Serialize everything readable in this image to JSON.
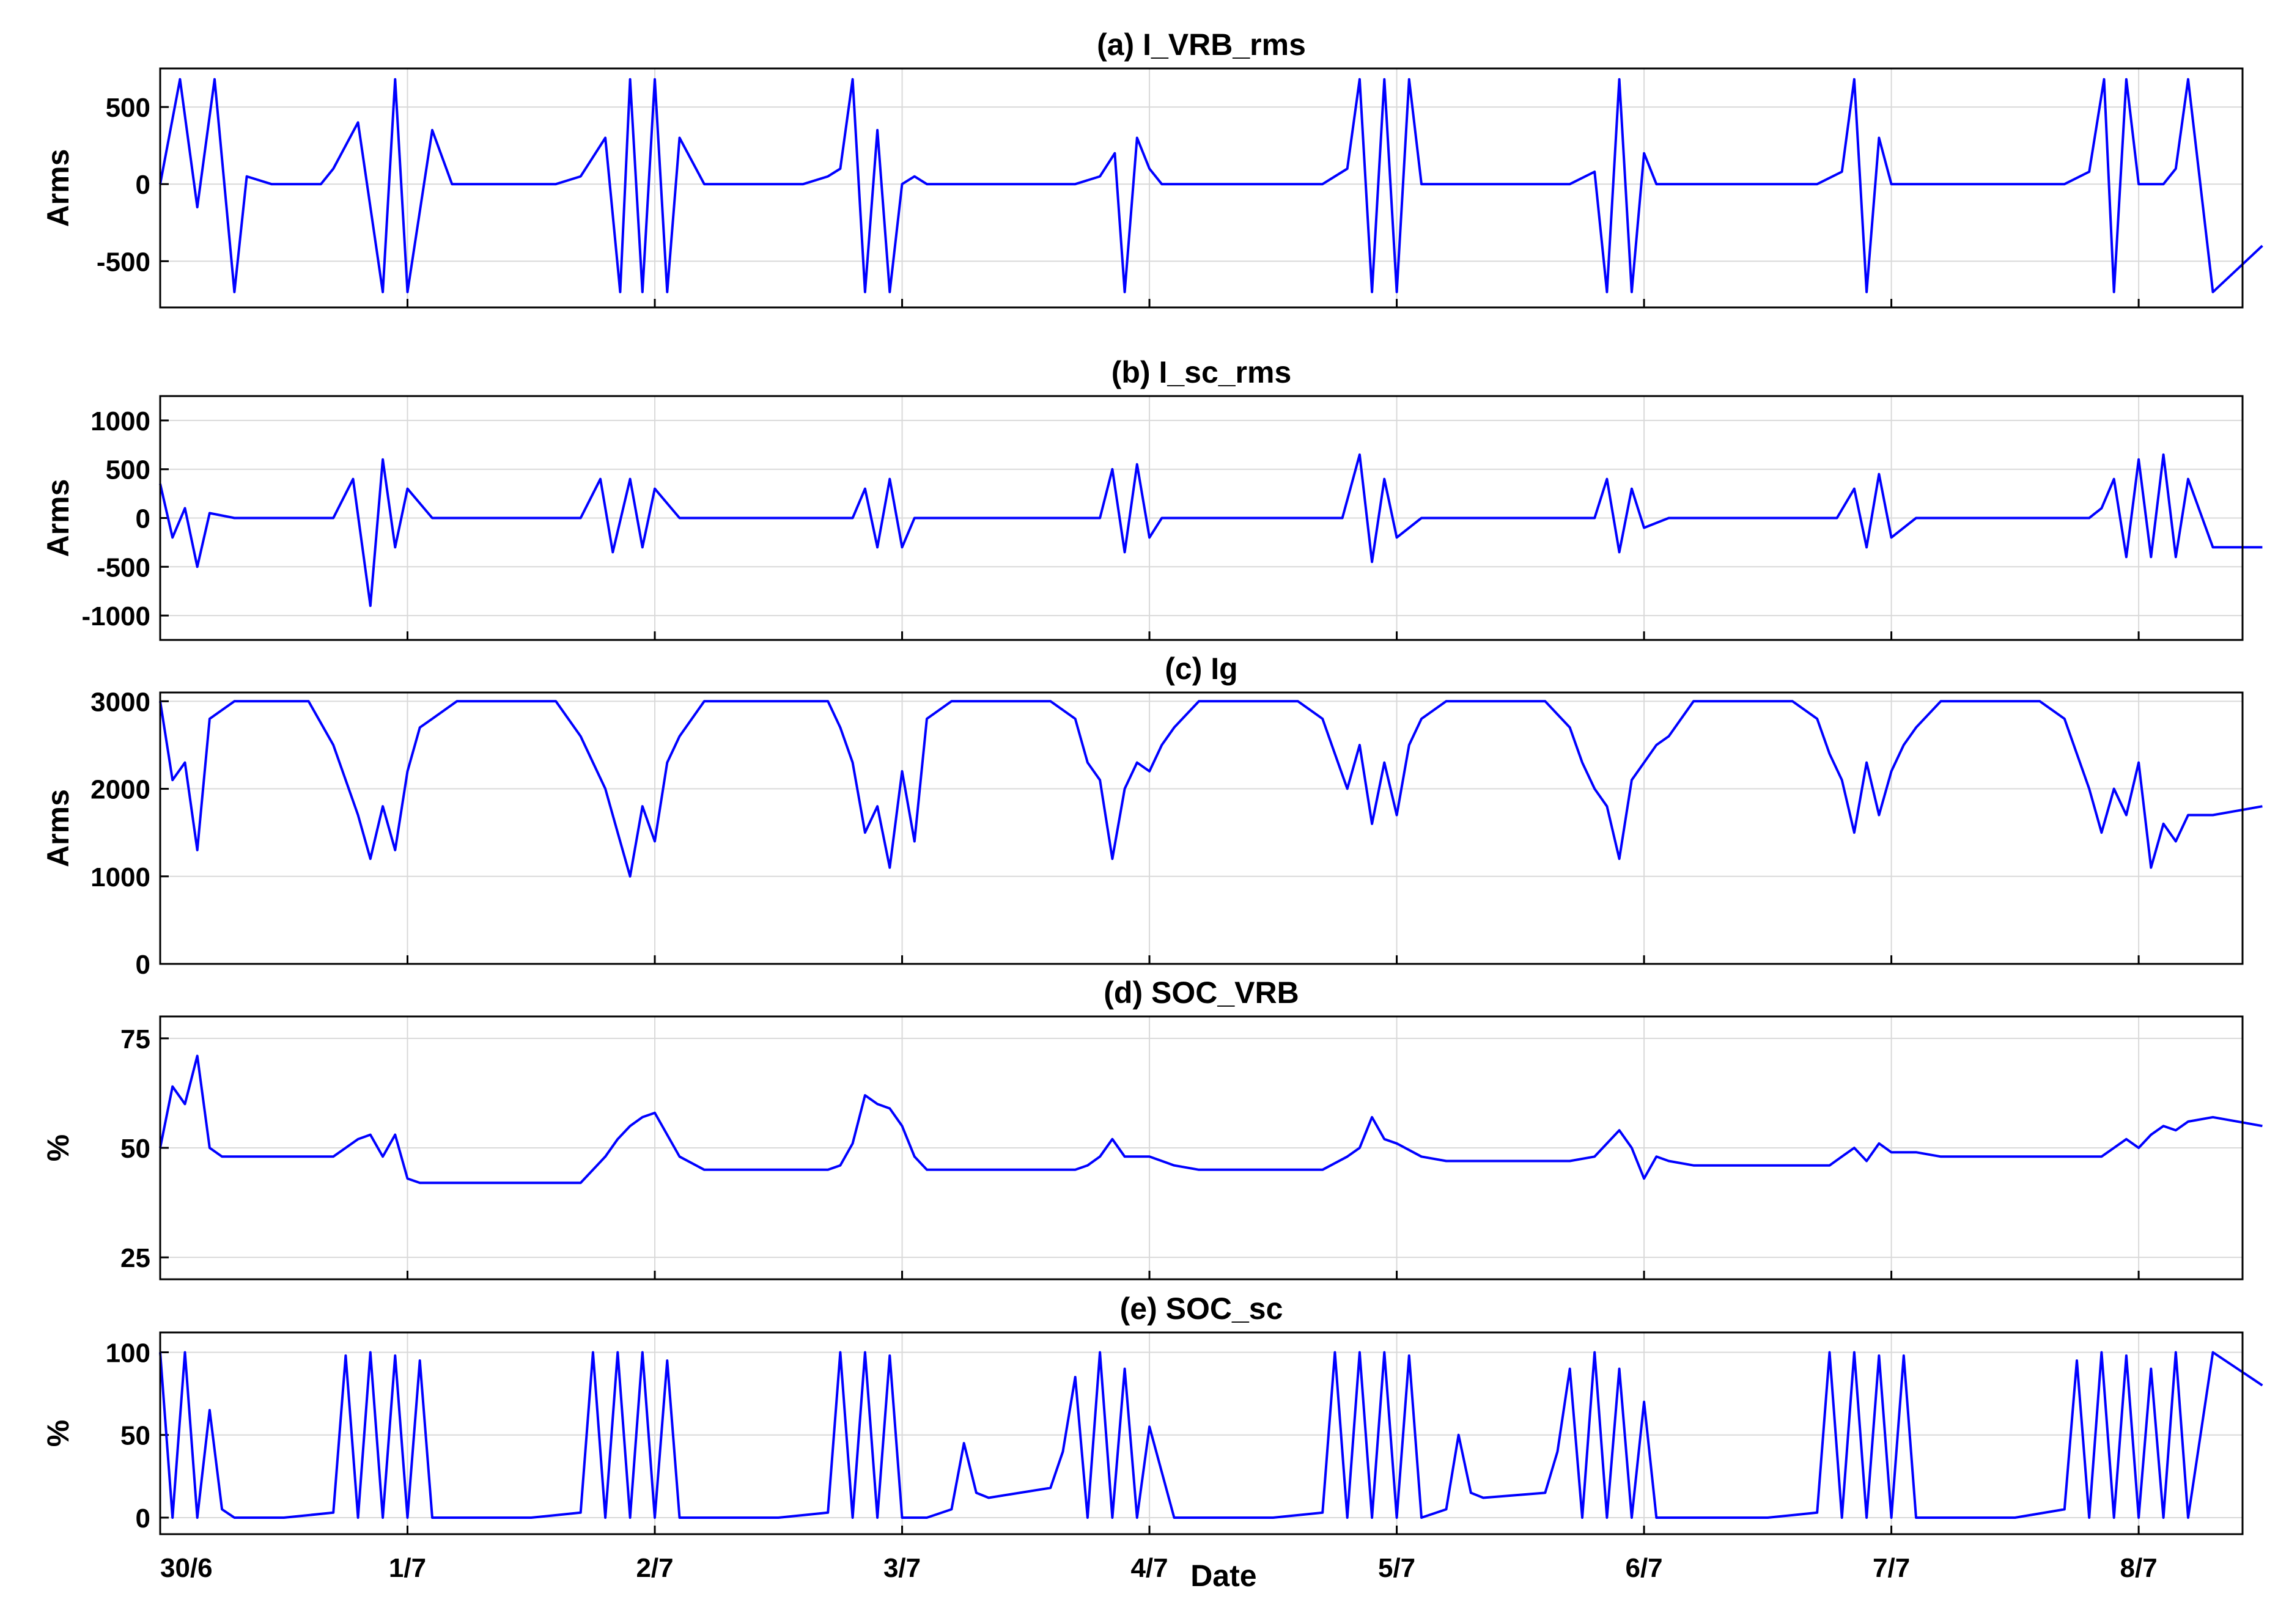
{
  "figure": {
    "xlabel": "Date",
    "x_ticks": [
      "30/6",
      "1/7",
      "2/7",
      "3/7",
      "4/7",
      "5/7",
      "6/7",
      "7/7",
      "8/7"
    ]
  },
  "colors": {
    "series": "#0000ff",
    "grid": "#d9d9d9",
    "frame": "#000000"
  },
  "chart_data": [
    {
      "type": "line",
      "title": "(a) I_VRB_rms",
      "ylabel": "Arms",
      "ylim": [
        -800,
        750
      ],
      "yticks": [
        -500,
        0,
        500
      ],
      "x": [
        0,
        0.08,
        0.15,
        0.22,
        0.3,
        0.35,
        0.45,
        0.5,
        0.55,
        0.6,
        0.65,
        0.7,
        0.8,
        0.9,
        0.95,
        1.0,
        1.1,
        1.18,
        1.25,
        1.35,
        1.5,
        1.6,
        1.7,
        1.8,
        1.86,
        1.9,
        1.95,
        2.0,
        2.05,
        2.1,
        2.2,
        2.25,
        2.3,
        2.4,
        2.5,
        2.6,
        2.7,
        2.75,
        2.8,
        2.85,
        2.9,
        2.95,
        3.0,
        3.05,
        3.1,
        3.2,
        3.3,
        3.5,
        3.7,
        3.8,
        3.86,
        3.9,
        3.95,
        4.0,
        4.05,
        4.1,
        4.2,
        4.3,
        4.5,
        4.7,
        4.8,
        4.85,
        4.9,
        4.95,
        5.0,
        5.05,
        5.1,
        5.2,
        5.3,
        5.5,
        5.7,
        5.8,
        5.85,
        5.9,
        5.95,
        6.0,
        6.05,
        6.1,
        6.2,
        6.3,
        6.5,
        6.7,
        6.8,
        6.85,
        6.9,
        6.95,
        7.0,
        7.05,
        7.1,
        7.2,
        7.3,
        7.5,
        7.7,
        7.8,
        7.86,
        7.9,
        7.95,
        8.0,
        8.05,
        8.1,
        8.15,
        8.2,
        8.3,
        8.5
      ],
      "y": [
        0,
        680,
        -150,
        680,
        -700,
        50,
        0,
        0,
        0,
        0,
        0,
        100,
        400,
        -700,
        680,
        -700,
        350,
        0,
        0,
        0,
        0,
        0,
        50,
        300,
        -700,
        680,
        -700,
        680,
        -700,
        300,
        0,
        0,
        0,
        0,
        0,
        0,
        50,
        100,
        680,
        -700,
        350,
        -700,
        0,
        50,
        0,
        0,
        0,
        0,
        0,
        50,
        200,
        -700,
        300,
        100,
        0,
        0,
        0,
        0,
        0,
        0,
        100,
        680,
        -700,
        680,
        -700,
        680,
        0,
        0,
        0,
        0,
        0,
        80,
        -700,
        680,
        -700,
        200,
        0,
        0,
        0,
        0,
        0,
        0,
        80,
        680,
        -700,
        300,
        0,
        0,
        0,
        0,
        0,
        0,
        0,
        80,
        680,
        -700,
        680,
        0,
        0,
        0,
        100,
        680,
        -700,
        -400
      ]
    },
    {
      "type": "line",
      "title": "(b) I_sc_rms",
      "ylabel": "Arms",
      "ylim": [
        -1250,
        1250
      ],
      "yticks": [
        -1000,
        -500,
        0,
        500,
        1000
      ],
      "x": [
        0,
        0.05,
        0.1,
        0.15,
        0.2,
        0.3,
        0.5,
        0.7,
        0.78,
        0.85,
        0.9,
        0.95,
        1.0,
        1.1,
        1.2,
        1.5,
        1.6,
        1.7,
        1.78,
        1.83,
        1.9,
        1.95,
        2.0,
        2.1,
        2.2,
        2.5,
        2.7,
        2.8,
        2.85,
        2.9,
        2.95,
        3.0,
        3.05,
        3.1,
        3.2,
        3.5,
        3.7,
        3.8,
        3.85,
        3.9,
        3.95,
        4.0,
        4.05,
        4.1,
        4.2,
        4.5,
        4.7,
        4.78,
        4.85,
        4.9,
        4.95,
        5.0,
        5.1,
        5.2,
        5.5,
        5.7,
        5.8,
        5.85,
        5.9,
        5.95,
        6.0,
        6.1,
        6.2,
        6.5,
        6.7,
        6.78,
        6.85,
        6.9,
        6.95,
        7.0,
        7.1,
        7.2,
        7.5,
        7.7,
        7.8,
        7.85,
        7.9,
        7.95,
        8.0,
        8.05,
        8.1,
        8.15,
        8.2,
        8.3,
        8.5
      ],
      "y": [
        350,
        -200,
        100,
        -500,
        50,
        0,
        0,
        0,
        400,
        -900,
        600,
        -300,
        300,
        0,
        0,
        0,
        0,
        0,
        400,
        -350,
        400,
        -300,
        300,
        0,
        0,
        0,
        0,
        0,
        300,
        -300,
        400,
        -300,
        0,
        0,
        0,
        0,
        0,
        0,
        500,
        -350,
        550,
        -200,
        0,
        0,
        0,
        0,
        0,
        0,
        650,
        -450,
        400,
        -200,
        0,
        0,
        0,
        0,
        0,
        400,
        -350,
        300,
        -100,
        0,
        0,
        0,
        0,
        0,
        300,
        -300,
        450,
        -200,
        0,
        0,
        0,
        0,
        0,
        100,
        400,
        -400,
        600,
        -400,
        650,
        -400,
        400,
        -300,
        -300
      ]
    },
    {
      "type": "line",
      "title": "(c) Ig",
      "ylabel": "Arms",
      "ylim": [
        0,
        3100
      ],
      "yticks": [
        0,
        1000,
        2000,
        3000
      ],
      "x": [
        0,
        0.05,
        0.1,
        0.15,
        0.2,
        0.3,
        0.5,
        0.6,
        0.7,
        0.75,
        0.8,
        0.85,
        0.9,
        0.95,
        1.0,
        1.05,
        1.1,
        1.2,
        1.3,
        1.5,
        1.6,
        1.7,
        1.75,
        1.8,
        1.85,
        1.9,
        1.95,
        2.0,
        2.05,
        2.1,
        2.2,
        2.3,
        2.5,
        2.6,
        2.7,
        2.75,
        2.8,
        2.85,
        2.9,
        2.95,
        3.0,
        3.05,
        3.1,
        3.2,
        3.3,
        3.5,
        3.6,
        3.7,
        3.75,
        3.8,
        3.85,
        3.9,
        3.95,
        4.0,
        4.05,
        4.1,
        4.2,
        4.3,
        4.5,
        4.6,
        4.7,
        4.75,
        4.8,
        4.85,
        4.9,
        4.95,
        5.0,
        5.05,
        5.1,
        5.2,
        5.3,
        5.5,
        5.6,
        5.7,
        5.75,
        5.8,
        5.85,
        5.9,
        5.95,
        6.0,
        6.05,
        6.1,
        6.2,
        6.3,
        6.5,
        6.6,
        6.7,
        6.75,
        6.8,
        6.85,
        6.9,
        6.95,
        7.0,
        7.05,
        7.1,
        7.2,
        7.3,
        7.5,
        7.6,
        7.7,
        7.75,
        7.8,
        7.85,
        7.9,
        7.95,
        8.0,
        8.05,
        8.1,
        8.15,
        8.2,
        8.3,
        8.5
      ],
      "y": [
        3000,
        2100,
        2300,
        1300,
        2800,
        3000,
        3000,
        3000,
        2500,
        2100,
        1700,
        1200,
        1800,
        1300,
        2200,
        2700,
        2800,
        3000,
        3000,
        3000,
        3000,
        2600,
        2300,
        2000,
        1500,
        1000,
        1800,
        1400,
        2300,
        2600,
        3000,
        3000,
        3000,
        3000,
        3000,
        2700,
        2300,
        1500,
        1800,
        1100,
        2200,
        1400,
        2800,
        3000,
        3000,
        3000,
        3000,
        2800,
        2300,
        2100,
        1200,
        2000,
        2300,
        2200,
        2500,
        2700,
        3000,
        3000,
        3000,
        3000,
        2800,
        2400,
        2000,
        2500,
        1600,
        2300,
        1700,
        2500,
        2800,
        3000,
        3000,
        3000,
        3000,
        2700,
        2300,
        2000,
        1800,
        1200,
        2100,
        2300,
        2500,
        2600,
        3000,
        3000,
        3000,
        3000,
        2800,
        2400,
        2100,
        1500,
        2300,
        1700,
        2200,
        2500,
        2700,
        3000,
        3000,
        3000,
        3000,
        2800,
        2400,
        2000,
        1500,
        2000,
        1700,
        2300,
        1100,
        1600,
        1400,
        1700,
        1700,
        1800
      ]
    },
    {
      "type": "line",
      "title": "(d) SOC_VRB",
      "ylabel": "%",
      "ylim": [
        20,
        80
      ],
      "yticks": [
        25,
        50,
        75
      ],
      "x": [
        0,
        0.05,
        0.1,
        0.15,
        0.2,
        0.25,
        0.3,
        0.5,
        0.7,
        0.8,
        0.85,
        0.9,
        0.95,
        1.0,
        1.05,
        1.1,
        1.2,
        1.4,
        1.6,
        1.7,
        1.8,
        1.85,
        1.9,
        1.95,
        2.0,
        2.1,
        2.2,
        2.4,
        2.6,
        2.7,
        2.75,
        2.8,
        2.85,
        2.9,
        2.95,
        3.0,
        3.05,
        3.1,
        3.2,
        3.4,
        3.6,
        3.7,
        3.75,
        3.8,
        3.85,
        3.9,
        4.0,
        4.1,
        4.2,
        4.4,
        4.6,
        4.7,
        4.8,
        4.85,
        4.9,
        4.95,
        5.0,
        5.1,
        5.2,
        5.4,
        5.6,
        5.7,
        5.8,
        5.85,
        5.9,
        5.95,
        6.0,
        6.05,
        6.1,
        6.2,
        6.4,
        6.6,
        6.7,
        6.75,
        6.8,
        6.85,
        6.9,
        6.95,
        7.0,
        7.1,
        7.2,
        7.4,
        7.6,
        7.7,
        7.8,
        7.85,
        7.9,
        7.95,
        8.0,
        8.05,
        8.1,
        8.15,
        8.2,
        8.3,
        8.5
      ],
      "y": [
        50,
        64,
        60,
        71,
        50,
        48,
        48,
        48,
        48,
        52,
        53,
        48,
        53,
        43,
        42,
        42,
        42,
        42,
        42,
        42,
        48,
        52,
        55,
        57,
        58,
        48,
        45,
        45,
        45,
        45,
        46,
        51,
        62,
        60,
        59,
        55,
        48,
        45,
        45,
        45,
        45,
        45,
        46,
        48,
        52,
        48,
        48,
        46,
        45,
        45,
        45,
        45,
        48,
        50,
        57,
        52,
        51,
        48,
        47,
        47,
        47,
        47,
        48,
        51,
        54,
        50,
        43,
        48,
        47,
        46,
        46,
        46,
        46,
        46,
        48,
        50,
        47,
        51,
        49,
        49,
        48,
        48,
        48,
        48,
        48,
        48,
        50,
        52,
        50,
        53,
        55,
        54,
        56,
        57,
        55
      ]
    },
    {
      "type": "line",
      "title": "(e) SOC_sc",
      "ylabel": "%",
      "ylim": [
        -10,
        112
      ],
      "yticks": [
        0,
        50,
        100
      ],
      "x": [
        0,
        0.05,
        0.1,
        0.15,
        0.2,
        0.25,
        0.3,
        0.5,
        0.7,
        0.75,
        0.8,
        0.85,
        0.9,
        0.95,
        1.0,
        1.05,
        1.1,
        1.2,
        1.5,
        1.7,
        1.75,
        1.8,
        1.85,
        1.9,
        1.95,
        2.0,
        2.05,
        2.1,
        2.2,
        2.5,
        2.7,
        2.75,
        2.8,
        2.85,
        2.9,
        2.95,
        3.0,
        3.1,
        3.2,
        3.25,
        3.3,
        3.35,
        3.6,
        3.65,
        3.7,
        3.75,
        3.8,
        3.85,
        3.9,
        3.95,
        4.0,
        4.1,
        4.2,
        4.5,
        4.7,
        4.75,
        4.8,
        4.85,
        4.9,
        4.95,
        5.0,
        5.05,
        5.1,
        5.2,
        5.25,
        5.3,
        5.35,
        5.6,
        5.65,
        5.7,
        5.75,
        5.8,
        5.85,
        5.9,
        5.95,
        6.0,
        6.05,
        6.1,
        6.2,
        6.5,
        6.7,
        6.75,
        6.8,
        6.85,
        6.9,
        6.95,
        7.0,
        7.05,
        7.1,
        7.2,
        7.5,
        7.7,
        7.75,
        7.8,
        7.85,
        7.9,
        7.95,
        8.0,
        8.05,
        8.1,
        8.15,
        8.2,
        8.3,
        8.5
      ],
      "y": [
        100,
        0,
        100,
        0,
        65,
        5,
        0,
        0,
        3,
        98,
        0,
        100,
        0,
        98,
        0,
        95,
        0,
        0,
        0,
        3,
        100,
        0,
        100,
        0,
        100,
        0,
        95,
        0,
        0,
        0,
        3,
        100,
        0,
        100,
        0,
        98,
        0,
        0,
        5,
        45,
        15,
        12,
        18,
        40,
        85,
        0,
        100,
        0,
        90,
        0,
        55,
        0,
        0,
        0,
        3,
        100,
        0,
        100,
        0,
        100,
        0,
        98,
        0,
        5,
        50,
        15,
        12,
        15,
        40,
        90,
        0,
        100,
        0,
        90,
        0,
        70,
        0,
        0,
        0,
        0,
        3,
        100,
        0,
        100,
        0,
        98,
        0,
        98,
        0,
        0,
        0,
        5,
        95,
        0,
        100,
        0,
        98,
        0,
        90,
        0,
        100,
        0,
        100,
        80
      ]
    }
  ]
}
